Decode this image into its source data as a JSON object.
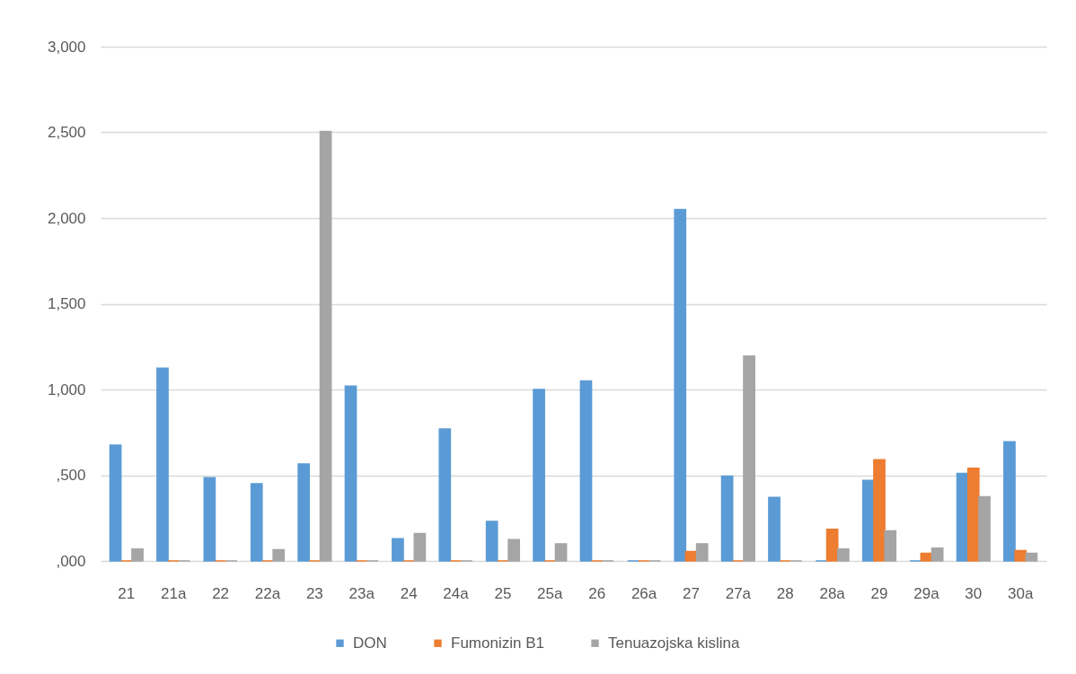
{
  "chart_data": {
    "type": "bar",
    "categories": [
      "21",
      "21a",
      "22",
      "22a",
      "23",
      "23a",
      "24",
      "24a",
      "25",
      "25a",
      "26",
      "26a",
      "27",
      "27a",
      "28",
      "28a",
      "29",
      "29a",
      "30",
      "30a"
    ],
    "series": [
      {
        "name": "DON",
        "color": "#5b9bd5",
        "values": [
          675,
          1125,
          485,
          450,
          565,
          1020,
          130,
          770,
          230,
          1000,
          1050,
          0,
          2050,
          495,
          370,
          0,
          470,
          0,
          510,
          695
        ]
      },
      {
        "name": "Fumonizin B1",
        "color": "#ed7d31",
        "values": [
          0,
          0,
          0,
          0,
          0,
          0,
          0,
          0,
          0,
          0,
          0,
          0,
          55,
          0,
          0,
          185,
          590,
          45,
          540,
          60
        ]
      },
      {
        "name": "Tenuazojska kislina",
        "color": "#a5a5a5",
        "values": [
          70,
          0,
          0,
          65,
          2505,
          0,
          160,
          0,
          125,
          100,
          0,
          0,
          100,
          1195,
          0,
          70,
          175,
          75,
          375,
          45
        ]
      }
    ],
    "ylim": [
      0,
      3000
    ],
    "yticks": [
      {
        "value": 0,
        "label": ",000"
      },
      {
        "value": 500,
        "label": ",500"
      },
      {
        "value": 1000,
        "label": "1,000"
      },
      {
        "value": 1500,
        "label": "1,500"
      },
      {
        "value": 2000,
        "label": "2,000"
      },
      {
        "value": 2500,
        "label": "2,500"
      },
      {
        "value": 3000,
        "label": "3,000"
      }
    ],
    "grid": "y",
    "legend": "bottom"
  }
}
